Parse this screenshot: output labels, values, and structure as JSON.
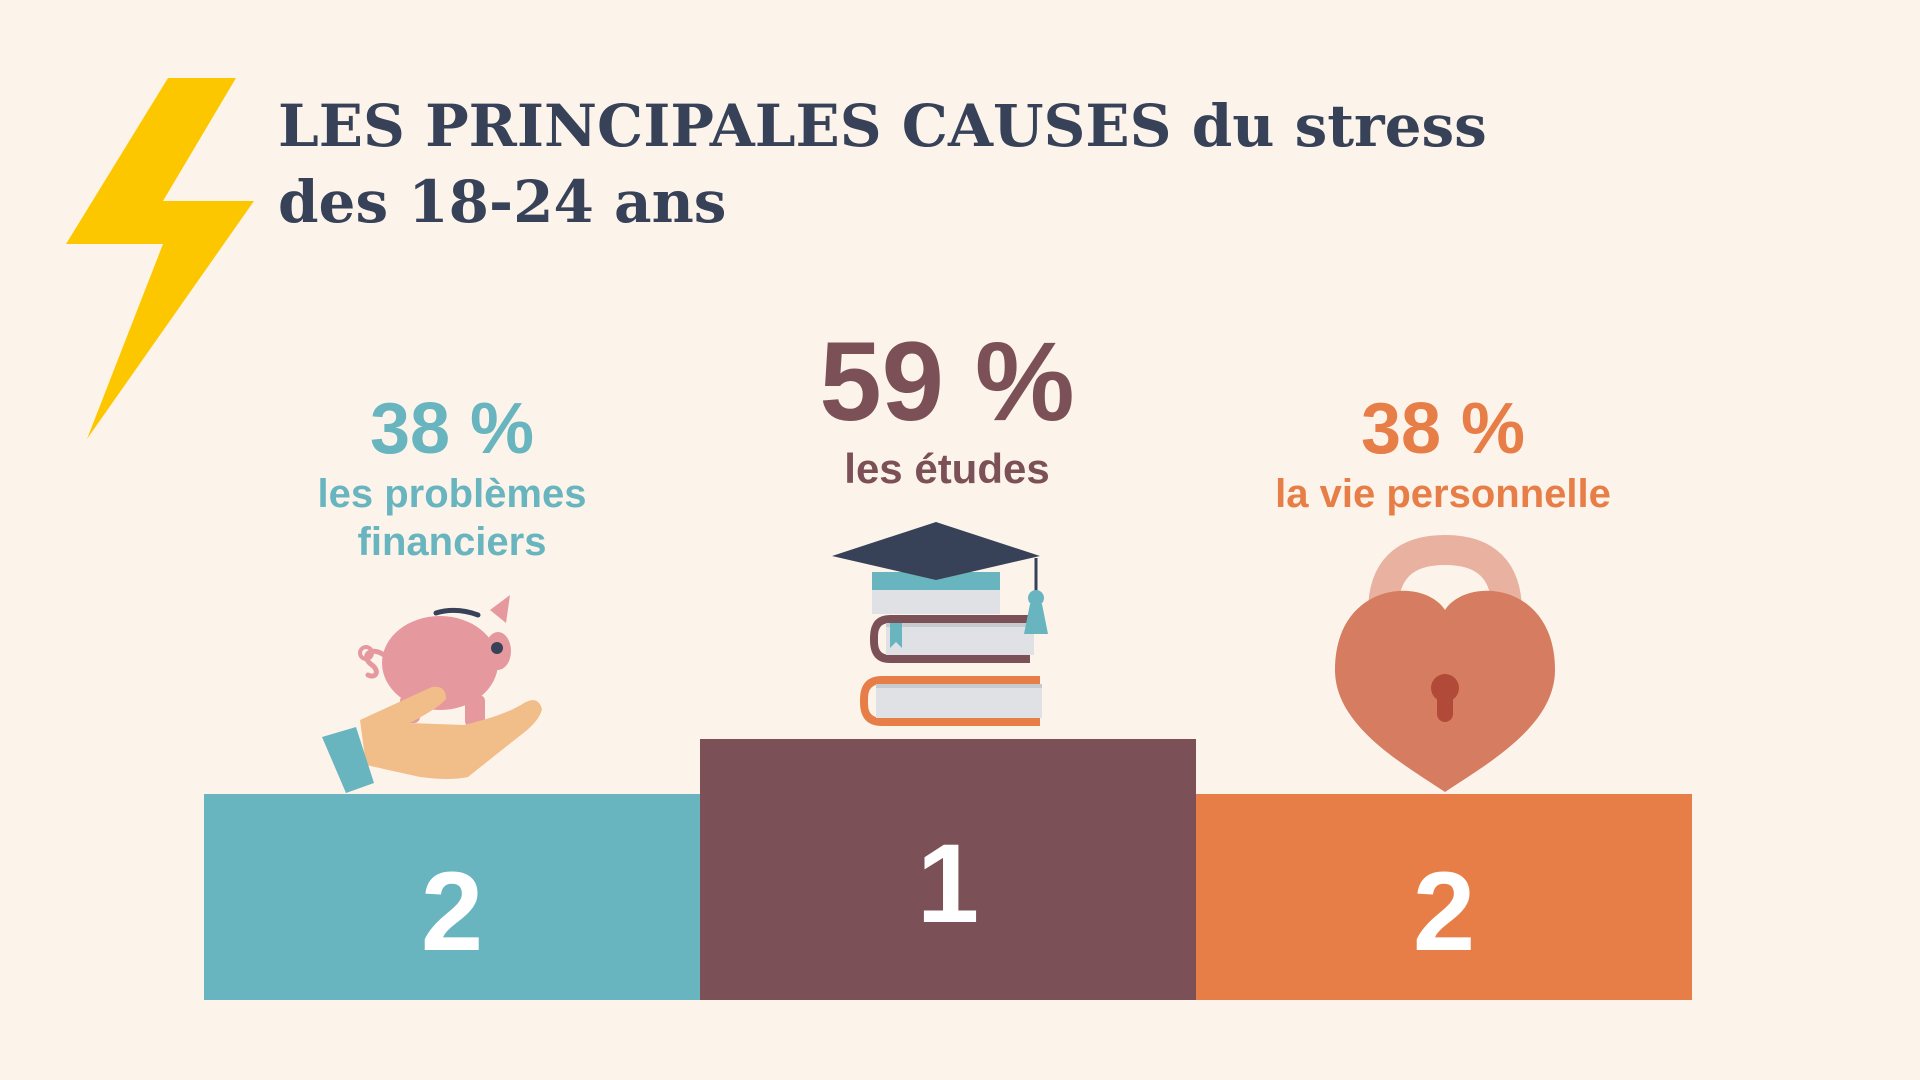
{
  "title": {
    "line1": "LES PRINCIPALES CAUSES du stress",
    "line2": "des 18-24 ans"
  },
  "colors": {
    "background": "#fcf4ea",
    "title": "#374158",
    "teal": "#68b5bf",
    "plum": "#7b5057",
    "orange": "#e87e47",
    "bolt": "#fdc700"
  },
  "icons": {
    "decoration": "lightning-bolt-icon",
    "left": "hand-piggy-bank-icon",
    "center": "graduation-cap-books-icon",
    "right": "heart-padlock-icon"
  },
  "chart_data": {
    "type": "bar",
    "categories": [
      "les problèmes financiers",
      "les études",
      "la vie personnelle"
    ],
    "values": [
      38,
      59,
      38
    ],
    "value_labels": [
      "38 %",
      "59 %",
      "38 %"
    ],
    "ranks": [
      "2",
      "1",
      "2"
    ],
    "colors": [
      "#68b5bf",
      "#7b5057",
      "#e87e47"
    ],
    "title": "LES PRINCIPALES CAUSES du stress des 18-24 ans",
    "xlabel": "",
    "ylabel": "",
    "grid": false
  }
}
